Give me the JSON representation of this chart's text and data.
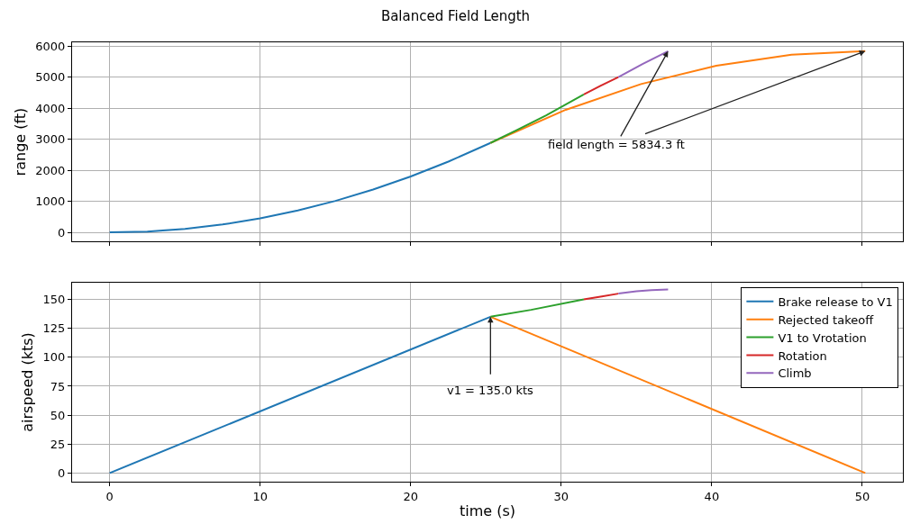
{
  "chart_data": [
    {
      "type": "line",
      "title": "Balanced Field Length",
      "ylabel": "range (ft)",
      "xlim": [
        -2.5,
        52.7
      ],
      "xticks": [
        0,
        10,
        20,
        30,
        40,
        50
      ],
      "ylim": [
        -290,
        6120
      ],
      "yticks": [
        0,
        1000,
        2000,
        3000,
        4000,
        5000,
        6000
      ],
      "grid": true,
      "tick_labels": "y",
      "line_style": "solid",
      "marker": "none",
      "series": [
        {
          "color": "#1f77b4",
          "x": [
            0,
            2.5,
            5,
            7.5,
            10,
            12.5,
            15,
            17.5,
            20,
            22.5,
            25.3
          ],
          "values": [
            0,
            28,
            113,
            253,
            450,
            703,
            1013,
            1378,
            1800,
            2278,
            2880
          ]
        },
        {
          "color": "#ff7f0e",
          "x": [
            25.3,
            30.3,
            35.3,
            40.3,
            45.3,
            50.2
          ],
          "values": [
            2880,
            3947,
            4776,
            5367,
            5720,
            5834.3
          ]
        },
        {
          "color": "#2ca02c",
          "x": [
            25.3,
            27,
            29,
            31.5
          ],
          "values": [
            2880,
            3280,
            3770,
            4440
          ]
        },
        {
          "color": "#d62728",
          "x": [
            31.5,
            32.6,
            33.8
          ],
          "values": [
            4440,
            4720,
            5000
          ]
        },
        {
          "color": "#9467bd",
          "x": [
            33.8,
            35.4,
            37.1
          ],
          "values": [
            5000,
            5420,
            5834.3
          ]
        }
      ],
      "annotations": [
        {
          "text": "field length = 5834.3 ft",
          "x": 50.2,
          "y": 5834.3
        }
      ]
    },
    {
      "type": "line",
      "xlabel": "time (s)",
      "ylabel": "airspeed (kts)",
      "xlim": [
        -2.5,
        52.7
      ],
      "xticks": [
        0,
        10,
        20,
        30,
        40,
        50
      ],
      "ylim": [
        -7.5,
        164.5
      ],
      "yticks": [
        0,
        25,
        50,
        75,
        100,
        125,
        150
      ],
      "grid": true,
      "legend": "top right",
      "line_style": "solid",
      "marker": "none",
      "series": [
        {
          "name": "Brake release to V1",
          "color": "#1f77b4",
          "x": [
            0,
            25.3
          ],
          "values": [
            0,
            135
          ]
        },
        {
          "name": "Rejected takeoff",
          "color": "#ff7f0e",
          "x": [
            25.3,
            50.2
          ],
          "values": [
            135,
            0
          ]
        },
        {
          "name": "V1 to Vrotation",
          "color": "#2ca02c",
          "x": [
            25.3,
            28,
            31.5
          ],
          "values": [
            135,
            141,
            150
          ]
        },
        {
          "name": "Rotation",
          "color": "#d62728",
          "x": [
            31.5,
            32.7,
            33.8
          ],
          "values": [
            150,
            152.5,
            155
          ]
        },
        {
          "name": "Climb",
          "color": "#9467bd",
          "x": [
            33.8,
            35,
            36,
            37.1
          ],
          "values": [
            155,
            157,
            158,
            158.5
          ]
        }
      ],
      "annotations": [
        {
          "text": "v1 = 135.0 kts",
          "x": 25.3,
          "y": 135
        }
      ]
    }
  ]
}
